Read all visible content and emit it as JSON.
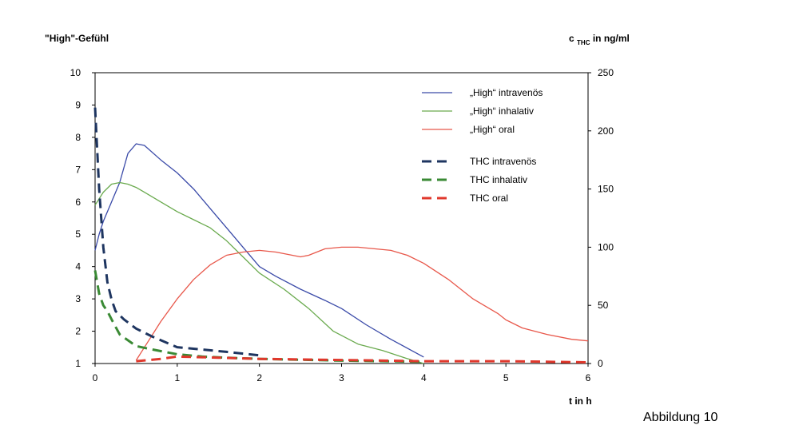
{
  "caption": "Abbildung 10",
  "chart_data": {
    "type": "line",
    "title": "",
    "ylabel_left": "\"High\"-Gefühl",
    "ylabel_right_main": "c",
    "ylabel_right_sub": "THC",
    "ylabel_right_rest": " in ng/ml",
    "xlabel": "t in h",
    "xlim": [
      0,
      6
    ],
    "ylim_left": [
      1,
      10
    ],
    "ylim_right": [
      0,
      250
    ],
    "xticks": [
      "0",
      "1",
      "2",
      "3",
      "4",
      "5",
      "6"
    ],
    "yticks_left": [
      "1",
      "2",
      "3",
      "4",
      "5",
      "6",
      "7",
      "8",
      "9",
      "10"
    ],
    "yticks_right": [
      "0",
      "50",
      "100",
      "150",
      "200",
      "250"
    ],
    "grid": false,
    "legend_position": "top-right",
    "series": [
      {
        "name": "„High“ intravenös",
        "axis": "left",
        "style": "solid",
        "color": "#3a4aa8",
        "x": [
          0.0,
          0.05,
          0.1,
          0.2,
          0.3,
          0.4,
          0.5,
          0.6,
          0.8,
          1.0,
          1.2,
          1.4,
          1.6,
          1.8,
          2.0,
          2.2,
          2.5,
          2.8,
          3.0,
          3.3,
          3.6,
          4.0
        ],
        "y": [
          4.5,
          5.0,
          5.4,
          6.0,
          6.6,
          7.5,
          7.8,
          7.75,
          7.3,
          6.9,
          6.4,
          5.8,
          5.2,
          4.6,
          4.0,
          3.7,
          3.3,
          2.95,
          2.7,
          2.2,
          1.75,
          1.2
        ]
      },
      {
        "name": "„High“ inhalativ",
        "axis": "left",
        "style": "solid",
        "color": "#6aaa4e",
        "x": [
          0.0,
          0.1,
          0.2,
          0.3,
          0.4,
          0.5,
          0.6,
          0.8,
          1.0,
          1.2,
          1.4,
          1.6,
          1.8,
          2.0,
          2.3,
          2.6,
          2.9,
          3.2,
          3.5,
          3.8,
          4.0
        ],
        "y": [
          5.9,
          6.3,
          6.55,
          6.6,
          6.55,
          6.45,
          6.3,
          6.0,
          5.7,
          5.45,
          5.2,
          4.8,
          4.3,
          3.8,
          3.3,
          2.7,
          2.0,
          1.6,
          1.4,
          1.15,
          1.0
        ]
      },
      {
        "name": "„High“ oral",
        "axis": "left",
        "style": "solid",
        "color": "#e8574a",
        "x": [
          0.5,
          0.6,
          0.8,
          1.0,
          1.2,
          1.4,
          1.6,
          1.8,
          2.0,
          2.2,
          2.4,
          2.5,
          2.6,
          2.8,
          3.0,
          3.2,
          3.4,
          3.6,
          3.8,
          4.0,
          4.3,
          4.6,
          4.9,
          5.0,
          5.2,
          5.5,
          5.8,
          6.0
        ],
        "y": [
          1.1,
          1.5,
          2.3,
          3.0,
          3.6,
          4.05,
          4.35,
          4.45,
          4.5,
          4.45,
          4.35,
          4.3,
          4.35,
          4.55,
          4.6,
          4.6,
          4.55,
          4.5,
          4.35,
          4.1,
          3.6,
          3.0,
          2.55,
          2.35,
          2.1,
          1.9,
          1.75,
          1.7
        ]
      },
      {
        "name": "THC intravenös",
        "axis": "right",
        "style": "dashed",
        "color": "#1e3560",
        "x": [
          0.0,
          0.05,
          0.1,
          0.15,
          0.2,
          0.25,
          0.35,
          0.5,
          0.7,
          1.0,
          1.3,
          1.6,
          2.0
        ],
        "y": [
          220,
          150,
          100,
          70,
          55,
          45,
          38,
          30,
          23,
          14,
          12,
          10,
          7
        ]
      },
      {
        "name": "THC inhalativ",
        "axis": "right",
        "style": "dashed",
        "color": "#3a8a34",
        "x": [
          0.0,
          0.05,
          0.1,
          0.15,
          0.2,
          0.3,
          0.5,
          0.7,
          1.0,
          1.3,
          1.6,
          2.0,
          3.0,
          4.0
        ],
        "y": [
          80,
          60,
          50,
          45,
          38,
          25,
          15,
          12,
          8,
          6,
          5,
          4,
          2.5,
          1.5
        ]
      },
      {
        "name": "THC oral",
        "axis": "right",
        "style": "dashed",
        "color": "#e0382c",
        "x": [
          0.5,
          0.8,
          1.0,
          1.5,
          2.0,
          3.0,
          4.0,
          5.0,
          6.0
        ],
        "y": [
          2,
          4,
          6,
          5,
          4,
          3,
          2,
          2,
          1
        ]
      }
    ]
  }
}
